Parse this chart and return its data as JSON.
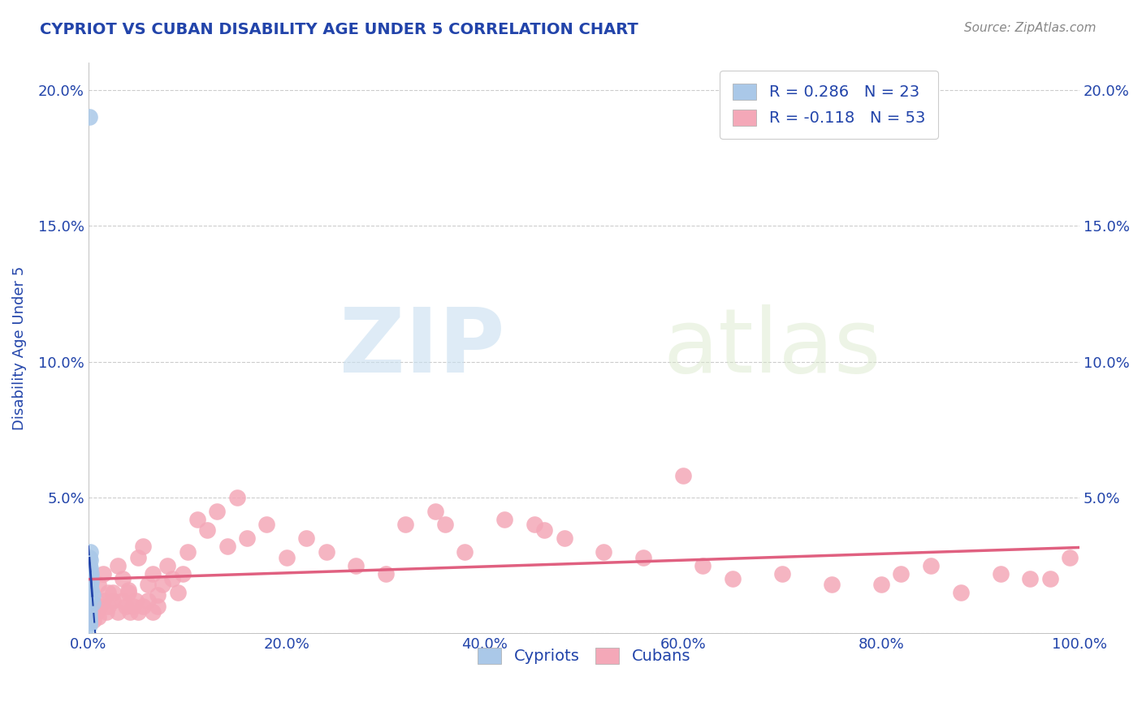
{
  "title": "CYPRIOT VS CUBAN DISABILITY AGE UNDER 5 CORRELATION CHART",
  "source": "Source: ZipAtlas.com",
  "ylabel": "Disability Age Under 5",
  "xlim": [
    0,
    1.0
  ],
  "ylim": [
    0,
    0.21
  ],
  "xticks": [
    0.0,
    0.2,
    0.4,
    0.6,
    0.8,
    1.0
  ],
  "xtick_labels": [
    "0.0%",
    "20.0%",
    "40.0%",
    "60.0%",
    "80.0%",
    "100.0%"
  ],
  "yticks": [
    0.0,
    0.05,
    0.1,
    0.15,
    0.2
  ],
  "ytick_labels": [
    "",
    "5.0%",
    "10.0%",
    "15.0%",
    "20.0%"
  ],
  "grid_color": "#cccccc",
  "background_color": "#ffffff",
  "cypriot_color": "#aac8e8",
  "cuban_color": "#f4a8b8",
  "cypriot_line_color": "#2244aa",
  "cuban_line_color": "#e06080",
  "title_color": "#2244aa",
  "axis_color": "#2244aa",
  "watermark_zip": "ZIP",
  "watermark_atlas": "atlas",
  "legend_R_cypriot": "R = 0.286",
  "legend_N_cypriot": "N = 23",
  "legend_R_cuban": "R = -0.118",
  "legend_N_cuban": "N = 53",
  "cypriot_x": [
    0.001,
    0.001,
    0.001,
    0.001,
    0.001,
    0.001,
    0.001,
    0.001,
    0.002,
    0.002,
    0.002,
    0.002,
    0.002,
    0.003,
    0.003,
    0.003,
    0.004,
    0.004,
    0.001,
    0.001,
    0.001,
    0.001,
    0.001
  ],
  "cypriot_y": [
    0.19,
    0.028,
    0.025,
    0.023,
    0.02,
    0.018,
    0.015,
    0.012,
    0.03,
    0.027,
    0.024,
    0.021,
    0.018,
    0.022,
    0.019,
    0.016,
    0.014,
    0.011,
    0.008,
    0.006,
    0.005,
    0.004,
    0.003
  ],
  "cuban_x": [
    0.01,
    0.015,
    0.02,
    0.025,
    0.03,
    0.035,
    0.04,
    0.05,
    0.055,
    0.06,
    0.065,
    0.07,
    0.075,
    0.08,
    0.085,
    0.09,
    0.095,
    0.1,
    0.11,
    0.12,
    0.13,
    0.14,
    0.15,
    0.16,
    0.18,
    0.2,
    0.22,
    0.24,
    0.27,
    0.3,
    0.32,
    0.35,
    0.36,
    0.38,
    0.42,
    0.45,
    0.46,
    0.48,
    0.52,
    0.56,
    0.6,
    0.62,
    0.65,
    0.7,
    0.75,
    0.8,
    0.82,
    0.85,
    0.88,
    0.92,
    0.95,
    0.97,
    0.99
  ],
  "cuban_y": [
    0.018,
    0.022,
    0.015,
    0.012,
    0.025,
    0.02,
    0.016,
    0.028,
    0.032,
    0.018,
    0.022,
    0.014,
    0.018,
    0.025,
    0.02,
    0.015,
    0.022,
    0.03,
    0.042,
    0.038,
    0.045,
    0.032,
    0.05,
    0.035,
    0.04,
    0.028,
    0.035,
    0.03,
    0.025,
    0.022,
    0.04,
    0.045,
    0.04,
    0.03,
    0.042,
    0.04,
    0.038,
    0.035,
    0.03,
    0.028,
    0.058,
    0.025,
    0.02,
    0.022,
    0.018,
    0.018,
    0.022,
    0.025,
    0.015,
    0.022,
    0.02,
    0.02,
    0.028
  ],
  "cuban_x_low": [
    0.005,
    0.008,
    0.01,
    0.012,
    0.015,
    0.018,
    0.02,
    0.025,
    0.03,
    0.035,
    0.038,
    0.04,
    0.042,
    0.045,
    0.048,
    0.05,
    0.055,
    0.06,
    0.065,
    0.07
  ],
  "cuban_y_low": [
    0.005,
    0.008,
    0.006,
    0.01,
    0.012,
    0.008,
    0.01,
    0.015,
    0.008,
    0.012,
    0.01,
    0.015,
    0.008,
    0.01,
    0.012,
    0.008,
    0.01,
    0.012,
    0.008,
    0.01
  ]
}
